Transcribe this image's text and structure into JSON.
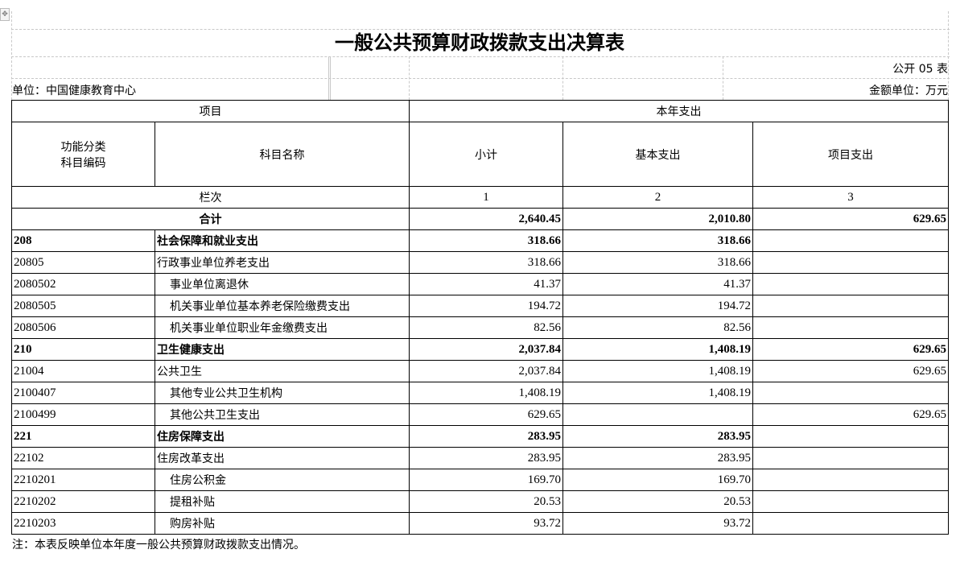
{
  "title": "一般公共预算财政拨款支出决算表",
  "form_no": "公开 05 表",
  "unit": "单位：中国健康教育中心",
  "money_unit": "金额单位：万元",
  "header": {
    "item": "项目",
    "current_year": "本年支出",
    "code": "功能分类\n科目编码",
    "code_l1": "功能分类",
    "code_l2": "科目编码",
    "name": "科目名称",
    "subtotal": "小计",
    "basic": "基本支出",
    "project": "项目支出",
    "col_index": "栏次",
    "idx1": "1",
    "idx2": "2",
    "idx3": "3"
  },
  "total": {
    "label": "合计",
    "subtotal": "2,640.45",
    "basic": "2,010.80",
    "project": "629.65"
  },
  "rows": [
    {
      "code": "208",
      "name": "社会保障和就业支出",
      "subtotal": "318.66",
      "basic": "318.66",
      "project": "",
      "level": 1
    },
    {
      "code": "20805",
      "name": "行政事业单位养老支出",
      "subtotal": "318.66",
      "basic": "318.66",
      "project": "",
      "level": 2
    },
    {
      "code": "2080502",
      "name": "事业单位离退休",
      "subtotal": "41.37",
      "basic": "41.37",
      "project": "",
      "level": 3
    },
    {
      "code": "2080505",
      "name": "机关事业单位基本养老保险缴费支出",
      "subtotal": "194.72",
      "basic": "194.72",
      "project": "",
      "level": 3
    },
    {
      "code": "2080506",
      "name": "机关事业单位职业年金缴费支出",
      "subtotal": "82.56",
      "basic": "82.56",
      "project": "",
      "level": 3
    },
    {
      "code": "210",
      "name": "卫生健康支出",
      "subtotal": "2,037.84",
      "basic": "1,408.19",
      "project": "629.65",
      "level": 1
    },
    {
      "code": "21004",
      "name": "公共卫生",
      "subtotal": "2,037.84",
      "basic": "1,408.19",
      "project": "629.65",
      "level": 2
    },
    {
      "code": "2100407",
      "name": "其他专业公共卫生机构",
      "subtotal": "1,408.19",
      "basic": "1,408.19",
      "project": "",
      "level": 3
    },
    {
      "code": "2100499",
      "name": "其他公共卫生支出",
      "subtotal": "629.65",
      "basic": "",
      "project": "629.65",
      "level": 3
    },
    {
      "code": "221",
      "name": "住房保障支出",
      "subtotal": "283.95",
      "basic": "283.95",
      "project": "",
      "level": 1
    },
    {
      "code": "22102",
      "name": "住房改革支出",
      "subtotal": "283.95",
      "basic": "283.95",
      "project": "",
      "level": 2
    },
    {
      "code": "2210201",
      "name": "住房公积金",
      "subtotal": "169.70",
      "basic": "169.70",
      "project": "",
      "level": 3
    },
    {
      "code": "2210202",
      "name": "提租补贴",
      "subtotal": "20.53",
      "basic": "20.53",
      "project": "",
      "level": 3
    },
    {
      "code": "2210203",
      "name": "购房补贴",
      "subtotal": "93.72",
      "basic": "93.72",
      "project": "",
      "level": 3
    }
  ],
  "note": "注：本表反映单位本年度一般公共预算财政拨款支出情况。"
}
